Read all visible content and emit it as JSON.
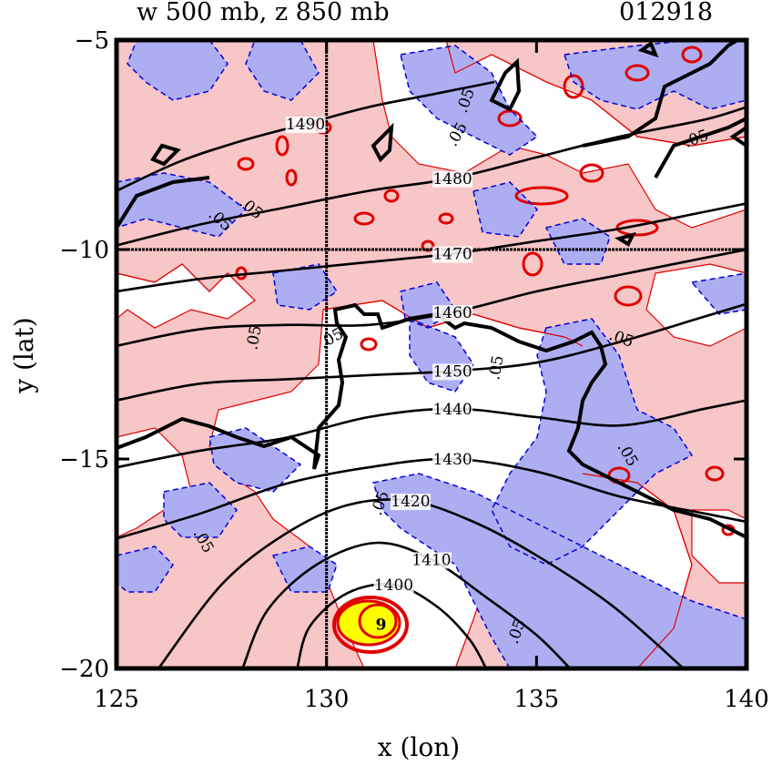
{
  "chart_data": {
    "type": "contour",
    "title_left": "w 500 mb, z 850 mb",
    "title_right": "012918",
    "xlabel": "x (lon)",
    "ylabel": "y (lat)",
    "xlim": [
      125,
      140
    ],
    "ylim": [
      -20,
      -5
    ],
    "x_ticks": [
      125,
      130,
      135,
      140
    ],
    "y_ticks": [
      -5,
      -10,
      -15,
      -20
    ],
    "x_tick_labels": [
      "125",
      "130",
      "135",
      "140"
    ],
    "y_tick_labels": [
      "−5",
      "−10",
      "−15",
      "−20"
    ],
    "reference_lines": {
      "lon": 130,
      "lat": -10
    },
    "colors": {
      "positive_fill": "#f7c6c6",
      "negative_fill": "#adaef2",
      "strong_core": "#ffff00",
      "positive_contour": "#e00000",
      "negative_contour": "#0000dd",
      "height_contour": "#000000"
    },
    "height_contours": [
      {
        "value": 1490,
        "label": "1490",
        "points": [
          [
            125.0,
            -8.6
          ],
          [
            126.5,
            -7.9
          ],
          [
            128.0,
            -7.4
          ],
          [
            129.5,
            -7.0
          ],
          [
            131.0,
            -6.6
          ],
          [
            132.5,
            -6.3
          ],
          [
            134.0,
            -6.0
          ]
        ]
      },
      {
        "value": 1480,
        "label": "1480",
        "points": [
          [
            125.0,
            -9.9
          ],
          [
            127.0,
            -9.4
          ],
          [
            129.0,
            -9.0
          ],
          [
            131.0,
            -8.6
          ],
          [
            133.0,
            -8.3
          ],
          [
            135.0,
            -7.8
          ],
          [
            137.0,
            -7.3
          ],
          [
            139.0,
            -6.9
          ],
          [
            140.0,
            -6.6
          ]
        ]
      },
      {
        "value": 1470,
        "label": "1470",
        "points": [
          [
            125.0,
            -11.0
          ],
          [
            127.0,
            -10.7
          ],
          [
            129.0,
            -10.5
          ],
          [
            131.0,
            -10.3
          ],
          [
            133.0,
            -10.1
          ],
          [
            135.0,
            -9.8
          ],
          [
            137.0,
            -9.5
          ],
          [
            139.0,
            -9.1
          ],
          [
            140.0,
            -8.9
          ]
        ]
      },
      {
        "value": 1460,
        "label": "1460",
        "points": [
          [
            125.0,
            -12.3
          ],
          [
            127.0,
            -11.9
          ],
          [
            129.0,
            -11.8
          ],
          [
            131.0,
            -11.8
          ],
          [
            133.0,
            -11.5
          ],
          [
            135.0,
            -11.0
          ],
          [
            137.0,
            -10.6
          ],
          [
            139.0,
            -10.2
          ],
          [
            140.0,
            -10.0
          ]
        ]
      },
      {
        "value": 1450,
        "label": "1450",
        "points": [
          [
            125.0,
            -13.6
          ],
          [
            127.0,
            -13.2
          ],
          [
            129.0,
            -13.1
          ],
          [
            131.0,
            -13.0
          ],
          [
            133.0,
            -12.9
          ],
          [
            135.0,
            -12.7
          ],
          [
            137.0,
            -12.2
          ],
          [
            139.0,
            -11.6
          ],
          [
            140.0,
            -11.3
          ]
        ]
      },
      {
        "value": 1440,
        "label": "1440",
        "points": [
          [
            125.0,
            -15.2
          ],
          [
            127.0,
            -14.8
          ],
          [
            129.0,
            -14.5
          ],
          [
            131.0,
            -14.0
          ],
          [
            133.0,
            -13.8
          ],
          [
            135.0,
            -14.0
          ],
          [
            137.0,
            -14.2
          ],
          [
            139.0,
            -13.8
          ],
          [
            140.0,
            -13.6
          ]
        ]
      },
      {
        "value": 1430,
        "label": "1430",
        "points": [
          [
            125.0,
            -16.9
          ],
          [
            127.0,
            -16.3
          ],
          [
            129.0,
            -15.6
          ],
          [
            131.0,
            -15.2
          ],
          [
            133.0,
            -15.0
          ],
          [
            135.0,
            -15.3
          ],
          [
            137.0,
            -15.9
          ],
          [
            139.0,
            -16.3
          ],
          [
            140.0,
            -16.5
          ]
        ]
      },
      {
        "value": 1420,
        "label": "1420",
        "points": [
          [
            126.0,
            -20.0
          ],
          [
            127.5,
            -18.0
          ],
          [
            129.0,
            -16.8
          ],
          [
            130.5,
            -16.1
          ],
          [
            132.0,
            -16.0
          ],
          [
            133.5,
            -16.5
          ],
          [
            135.0,
            -17.3
          ],
          [
            136.8,
            -18.5
          ],
          [
            138.5,
            -20.0
          ]
        ]
      },
      {
        "value": 1410,
        "label": "1410",
        "points": [
          [
            128.0,
            -20.0
          ],
          [
            128.6,
            -18.6
          ],
          [
            129.8,
            -17.5
          ],
          [
            131.2,
            -17.0
          ],
          [
            132.5,
            -17.4
          ],
          [
            133.8,
            -18.3
          ],
          [
            135.0,
            -19.2
          ],
          [
            135.8,
            -20.0
          ]
        ]
      },
      {
        "value": 1400,
        "label": "1400",
        "points": [
          [
            129.3,
            -20.0
          ],
          [
            129.6,
            -19.0
          ],
          [
            130.5,
            -18.2
          ],
          [
            131.6,
            -18.0
          ],
          [
            132.6,
            -18.5
          ],
          [
            133.4,
            -19.3
          ],
          [
            133.8,
            -20.0
          ]
        ]
      }
    ],
    "contour_labels_w": [
      ".05",
      ".05",
      ".05",
      ".05",
      ".05",
      ".05",
      ".05",
      ".05",
      ".05",
      ".05",
      ".05",
      ".05",
      ".05"
    ],
    "vortex_center": {
      "lon": 131.3,
      "lat": -18.9,
      "label": "9"
    }
  }
}
